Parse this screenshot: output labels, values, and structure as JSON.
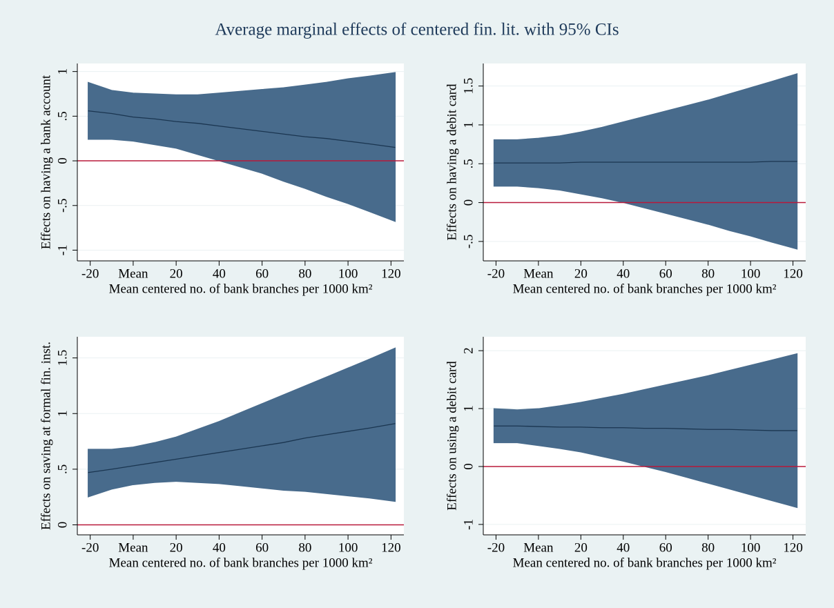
{
  "title": "Average marginal effects of centered fin. lit. with 95% CIs",
  "chart_data": [
    {
      "type": "line",
      "xlabel": "Mean centered no. of bank branches per 1000 km²",
      "ylabel": "Effects on having a bank account",
      "x": [
        -21,
        -10,
        0,
        10,
        20,
        30,
        40,
        50,
        60,
        70,
        80,
        90,
        100,
        110,
        122
      ],
      "values": [
        0.56,
        0.53,
        0.49,
        0.47,
        0.44,
        0.42,
        0.39,
        0.36,
        0.33,
        0.3,
        0.27,
        0.25,
        0.22,
        0.19,
        0.15
      ],
      "upper": [
        0.88,
        0.79,
        0.76,
        0.75,
        0.74,
        0.74,
        0.76,
        0.78,
        0.8,
        0.82,
        0.85,
        0.88,
        0.92,
        0.95,
        0.99
      ],
      "lower": [
        0.24,
        0.24,
        0.22,
        0.18,
        0.14,
        0.07,
        0.0,
        -0.07,
        -0.14,
        -0.23,
        -0.31,
        -0.4,
        -0.48,
        -0.57,
        -0.68
      ],
      "color": "#1a3550",
      "band_color": "#486b8c",
      "hline": 0,
      "hline_color": "#b8193a",
      "xlim": [
        -26,
        126
      ],
      "xticks": [
        -20,
        {
          "value": 0,
          "label": "Mean"
        },
        20,
        40,
        60,
        80,
        100,
        120
      ],
      "ylim": [
        -1.12,
        1.09
      ],
      "yticks": [
        -1,
        {
          "value": -0.5,
          "label": "-.5"
        },
        0,
        {
          "value": 0.5,
          "label": ".5"
        },
        1
      ],
      "grid": true
    },
    {
      "type": "line",
      "xlabel": "Mean centered no. of bank branches per 1000 km²",
      "ylabel": "Effects on having a debit card",
      "x": [
        -21,
        -10,
        0,
        10,
        20,
        30,
        40,
        50,
        60,
        70,
        80,
        90,
        100,
        110,
        122
      ],
      "values": [
        0.51,
        0.51,
        0.51,
        0.51,
        0.52,
        0.52,
        0.52,
        0.52,
        0.52,
        0.52,
        0.52,
        0.52,
        0.52,
        0.53,
        0.53
      ],
      "upper": [
        0.81,
        0.81,
        0.83,
        0.86,
        0.91,
        0.97,
        1.04,
        1.11,
        1.18,
        1.25,
        1.32,
        1.4,
        1.48,
        1.56,
        1.66
      ],
      "lower": [
        0.21,
        0.21,
        0.19,
        0.16,
        0.11,
        0.06,
        0.0,
        -0.07,
        -0.14,
        -0.21,
        -0.28,
        -0.36,
        -0.43,
        -0.51,
        -0.6
      ],
      "color": "#1a3550",
      "band_color": "#486b8c",
      "hline": 0,
      "hline_color": "#b8193a",
      "xlim": [
        -26,
        126
      ],
      "xticks": [
        -20,
        {
          "value": 0,
          "label": "Mean"
        },
        20,
        40,
        60,
        80,
        100,
        120
      ],
      "ylim": [
        -0.75,
        1.79
      ],
      "yticks": [
        {
          "value": -0.5,
          "label": "-.5"
        },
        0,
        {
          "value": 0.5,
          "label": ".5"
        },
        1,
        1.5
      ],
      "grid": true
    },
    {
      "type": "line",
      "xlabel": "Mean centered no. of bank branches per 1000 km²",
      "ylabel": "Effects on saving at formal fin. inst.",
      "x": [
        -21,
        -10,
        0,
        10,
        20,
        30,
        40,
        50,
        60,
        70,
        80,
        90,
        100,
        110,
        122
      ],
      "values": [
        0.47,
        0.5,
        0.53,
        0.56,
        0.59,
        0.62,
        0.65,
        0.68,
        0.71,
        0.74,
        0.78,
        0.81,
        0.84,
        0.87,
        0.91
      ],
      "upper": [
        0.68,
        0.68,
        0.7,
        0.74,
        0.79,
        0.86,
        0.93,
        1.01,
        1.09,
        1.17,
        1.25,
        1.33,
        1.41,
        1.49,
        1.59
      ],
      "lower": [
        0.25,
        0.32,
        0.36,
        0.38,
        0.39,
        0.38,
        0.37,
        0.35,
        0.33,
        0.31,
        0.3,
        0.28,
        0.26,
        0.24,
        0.21
      ],
      "color": "#1a3550",
      "band_color": "#486b8c",
      "hline": 0,
      "hline_color": "#b8193a",
      "xlim": [
        -26,
        126
      ],
      "xticks": [
        -20,
        {
          "value": 0,
          "label": "Mean"
        },
        20,
        40,
        60,
        80,
        100,
        120
      ],
      "ylim": [
        -0.09,
        1.69
      ],
      "yticks": [
        0,
        {
          "value": 0.5,
          "label": ".5"
        },
        1,
        1.5
      ],
      "grid": true
    },
    {
      "type": "line",
      "xlabel": "Mean centered no. of bank branches per 1000 km²",
      "ylabel": "Effects on using a debit card",
      "x": [
        -21,
        -10,
        0,
        10,
        20,
        30,
        40,
        50,
        60,
        70,
        80,
        90,
        100,
        110,
        122
      ],
      "values": [
        0.7,
        0.7,
        0.69,
        0.68,
        0.68,
        0.67,
        0.67,
        0.66,
        0.66,
        0.65,
        0.64,
        0.64,
        0.63,
        0.62,
        0.62
      ],
      "upper": [
        1.0,
        0.98,
        1.0,
        1.05,
        1.11,
        1.18,
        1.25,
        1.33,
        1.41,
        1.49,
        1.57,
        1.66,
        1.75,
        1.84,
        1.95
      ],
      "lower": [
        0.41,
        0.41,
        0.36,
        0.31,
        0.25,
        0.17,
        0.09,
        0.0,
        -0.09,
        -0.19,
        -0.29,
        -0.39,
        -0.49,
        -0.59,
        -0.71
      ],
      "color": "#1a3550",
      "band_color": "#486b8c",
      "hline": 0,
      "hline_color": "#b8193a",
      "xlim": [
        -26,
        126
      ],
      "xticks": [
        -20,
        {
          "value": 0,
          "label": "Mean"
        },
        20,
        40,
        60,
        80,
        100,
        120
      ],
      "ylim": [
        -1.18,
        2.24
      ],
      "yticks": [
        -1,
        0,
        1,
        2
      ],
      "grid": true
    }
  ]
}
